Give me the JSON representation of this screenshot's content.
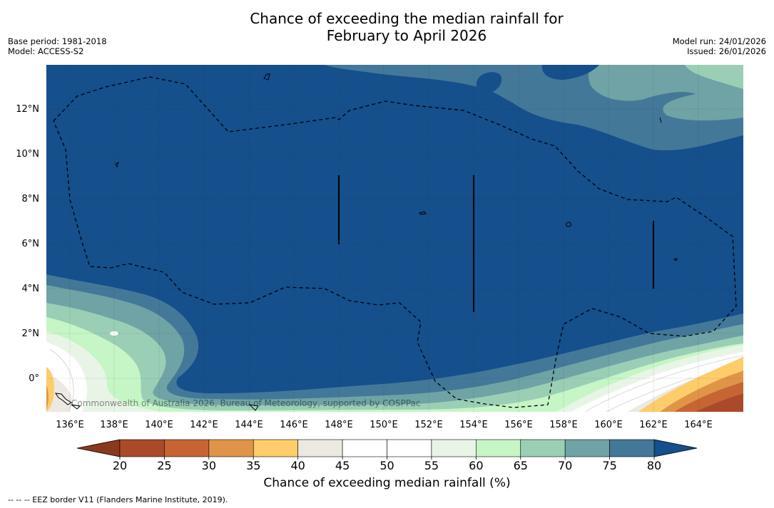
{
  "title": {
    "line1": "Chance of exceeding the median rainfall for",
    "line2": "February to April 2026"
  },
  "meta_left": {
    "base_period": "Base period: 1981-2018",
    "model": "Model: ACCESS-S2"
  },
  "meta_right": {
    "model_run": "Model run: 24/01/2026",
    "issued": "Issued: 26/01/2026"
  },
  "map": {
    "lat_labels": [
      "12°N",
      "10°N",
      "8°N",
      "6°N",
      "4°N",
      "2°N",
      "0°"
    ],
    "lon_labels": [
      "136°E",
      "138°E",
      "140°E",
      "142°E",
      "144°E",
      "146°E",
      "148°E",
      "150°E",
      "152°E",
      "154°E",
      "156°E",
      "158°E",
      "160°E",
      "162°E",
      "164°E"
    ],
    "copyright": "Commonwealth of Australia 2026, Bureau of Meteorology, supported by COSPPac",
    "predominant_value_range": "above 80%"
  },
  "colorbar": {
    "ticks": [
      "20",
      "25",
      "30",
      "35",
      "40",
      "45",
      "50",
      "55",
      "60",
      "65",
      "70",
      "75",
      "80"
    ],
    "colors": {
      "below_20": "#8a3a1c",
      "20-25": "#aa4a2a",
      "25-30": "#c66533",
      "30-35": "#e09447",
      "35-40": "#fdcd6a",
      "40-45": "#ece8e2",
      "45-50": "#ffffff",
      "50-55": "#ffffff",
      "55-60": "#e8f5e6",
      "60-65": "#c6f5c6",
      "65-70": "#9acfb6",
      "70-75": "#6fa3a5",
      "75-80": "#437899",
      "above_80": "#154f8c"
    },
    "label": "Chance of exceeding median rainfall (%)"
  },
  "footer": {
    "legend": "-- -- -- EEZ border V11 (Flanders Marine Institute, 2019)."
  }
}
